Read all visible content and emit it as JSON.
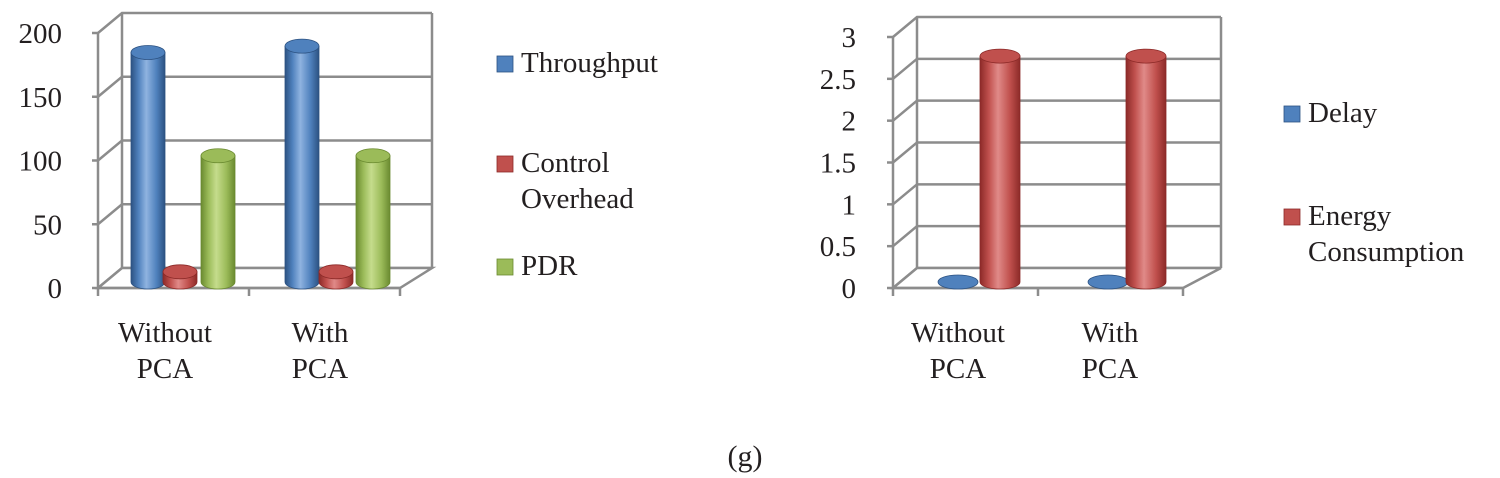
{
  "caption": "(g)",
  "chart_data": [
    {
      "type": "bar",
      "style": "3d-cylinder",
      "categories": [
        "Without PCA",
        "With PCA"
      ],
      "category_lines": [
        [
          "Without",
          "PCA"
        ],
        [
          "With",
          "PCA"
        ]
      ],
      "series": [
        {
          "name": "Throughput",
          "name_lines": [
            "Throughput"
          ],
          "values": [
            180,
            185
          ],
          "color": "#4f81bd",
          "dark": "#2c5282",
          "light": "#8fb3e0"
        },
        {
          "name": "Control Overhead",
          "name_lines": [
            "Control",
            "Overhead"
          ],
          "values": [
            8,
            8
          ],
          "color": "#c0504d",
          "dark": "#8c2a28",
          "light": "#e08a88"
        },
        {
          "name": "PDR",
          "name_lines": [
            "PDR"
          ],
          "values": [
            99,
            99
          ],
          "color": "#9bbb59",
          "dark": "#6a8a30",
          "light": "#c5dc8c"
        }
      ],
      "ylim": [
        0,
        200
      ],
      "yticks": [
        0,
        50,
        100,
        150,
        200
      ],
      "ytick_labels": [
        "0",
        "50",
        "100",
        "150",
        "200"
      ],
      "grid": true,
      "legend": "right"
    },
    {
      "type": "bar",
      "style": "3d-cylinder",
      "categories": [
        "Without PCA",
        "With PCA"
      ],
      "category_lines": [
        [
          "Without",
          "PCA"
        ],
        [
          "With",
          "PCA"
        ]
      ],
      "series": [
        {
          "name": "Delay",
          "name_lines": [
            "Delay"
          ],
          "values": [
            0.01,
            0.01
          ],
          "color": "#4f81bd",
          "dark": "#2c5282",
          "light": "#8fb3e0"
        },
        {
          "name": "Energy Consumption",
          "name_lines": [
            "Energy",
            "Consumption"
          ],
          "values": [
            2.7,
            2.7
          ],
          "color": "#c0504d",
          "dark": "#8c2a28",
          "light": "#e08a88"
        }
      ],
      "ylim": [
        0,
        3
      ],
      "yticks": [
        0,
        0.5,
        1,
        1.5,
        2,
        2.5,
        3
      ],
      "ytick_labels": [
        "0",
        "0.5",
        "1",
        "1.5",
        "2",
        "2.5",
        "3"
      ],
      "grid": true,
      "legend": "right"
    }
  ]
}
